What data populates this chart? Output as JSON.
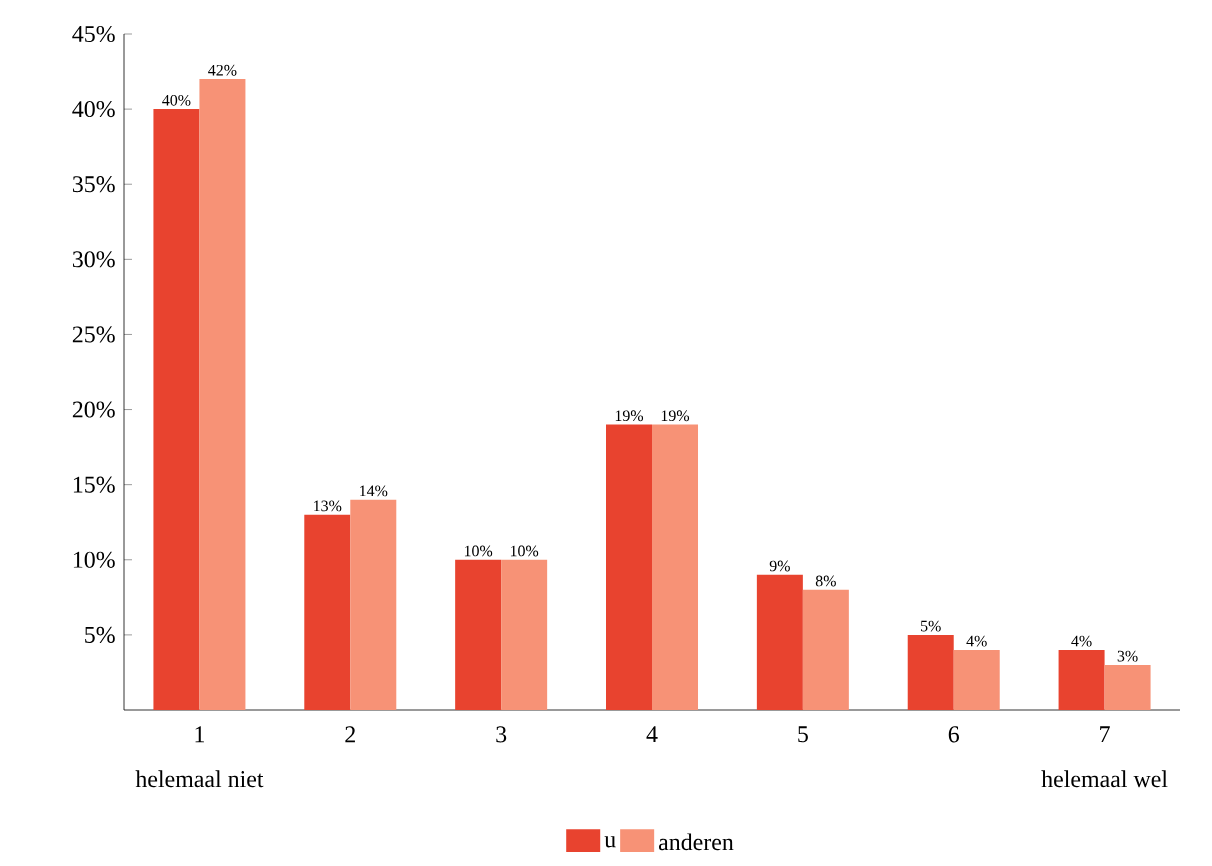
{
  "chart_data": {
    "type": "bar",
    "categories": [
      "1",
      "2",
      "3",
      "4",
      "5",
      "6",
      "7"
    ],
    "series": [
      {
        "name": "u",
        "color": "#e8432f",
        "values": [
          40,
          13,
          10,
          19,
          9,
          5,
          4
        ],
        "value_labels": [
          "40%",
          "13%",
          "10%",
          "19%",
          "9%",
          "5%",
          "4%"
        ]
      },
      {
        "name": "anderen",
        "color": "#f79276",
        "values": [
          42,
          14,
          10,
          19,
          8,
          4,
          3
        ],
        "value_labels": [
          "42%",
          "14%",
          "10%",
          "19%",
          "8%",
          "4%",
          "3%"
        ]
      }
    ],
    "ylim": [
      0,
      45
    ],
    "yticks": [
      {
        "value": 5,
        "label": "5%"
      },
      {
        "value": 10,
        "label": "10%"
      },
      {
        "value": 15,
        "label": "15%"
      },
      {
        "value": 20,
        "label": "20%"
      },
      {
        "value": 25,
        "label": "25%"
      },
      {
        "value": 30,
        "label": "30%"
      },
      {
        "value": 35,
        "label": "35%"
      },
      {
        "value": 40,
        "label": "40%"
      },
      {
        "value": 45,
        "label": "45%"
      }
    ],
    "annotations": [
      "helemaal niet",
      "helemaal wel"
    ],
    "legend": "bottom",
    "grid": false
  }
}
